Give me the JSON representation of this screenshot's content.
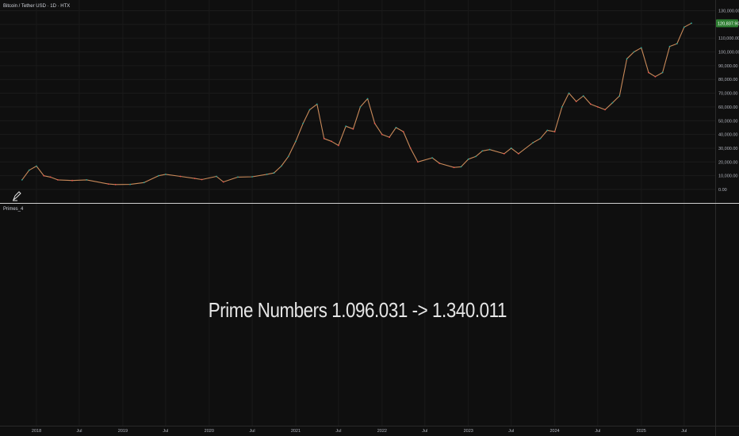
{
  "header": {
    "symbol_line": "Bitcoin / Tether USD · 1D · HTX"
  },
  "indicator": {
    "name": "Primes_4",
    "overlay_text": "Prime Numbers 1.096.031 -> 1.340.011"
  },
  "price_axis": {
    "labels": [
      "130,000.00",
      "120,837.90",
      "110,000.00",
      "100,000.00",
      "90,000.00",
      "80,000.00",
      "70,000.00",
      "60,000.00",
      "50,000.00",
      "40,000.00",
      "30,000.00",
      "20,000.00",
      "10,000.00",
      "0.00"
    ],
    "last_price": "120,837.90",
    "last_price_value": 120837.9
  },
  "time_axis": {
    "labels": [
      "2018",
      "Jul",
      "2019",
      "Jul",
      "2020",
      "Jul",
      "2021",
      "Jul",
      "2022",
      "Jul",
      "2023",
      "Jul",
      "2024",
      "Jul",
      "2025",
      "Jul"
    ]
  },
  "colors": {
    "background": "#0f0f0f",
    "line": "#c98a5a",
    "up_candle": "#26a69a",
    "down_candle": "#ef5350",
    "last_price_badge": "#2e7d32",
    "separator": "#d0d0d0"
  },
  "chart_data": {
    "type": "line",
    "title": "Bitcoin / Tether USD · 1D · HTX",
    "ylim": [
      0,
      130000
    ],
    "grid": true,
    "x": [
      "2017-11",
      "2017-12",
      "2018-01",
      "2018-02",
      "2018-03",
      "2018-04",
      "2018-06",
      "2018-08",
      "2018-11",
      "2018-12",
      "2019-02",
      "2019-04",
      "2019-06",
      "2019-07",
      "2019-09",
      "2019-11",
      "2019-12",
      "2020-02",
      "2020-03",
      "2020-05",
      "2020-07",
      "2020-09",
      "2020-10",
      "2020-11",
      "2020-12",
      "2021-01",
      "2021-02",
      "2021-03",
      "2021-04",
      "2021-05",
      "2021-06",
      "2021-07",
      "2021-08",
      "2021-09",
      "2021-10",
      "2021-11",
      "2021-12",
      "2022-01",
      "2022-02",
      "2022-03",
      "2022-04",
      "2022-05",
      "2022-06",
      "2022-08",
      "2022-09",
      "2022-11",
      "2022-12",
      "2023-01",
      "2023-02",
      "2023-03",
      "2023-04",
      "2023-06",
      "2023-07",
      "2023-08",
      "2023-10",
      "2023-11",
      "2023-12",
      "2024-01",
      "2024-02",
      "2024-03",
      "2024-04",
      "2024-05",
      "2024-06",
      "2024-07",
      "2024-08",
      "2024-09",
      "2024-10",
      "2024-11",
      "2024-12",
      "2025-01",
      "2025-02",
      "2025-03",
      "2025-04",
      "2025-05",
      "2025-06",
      "2025-07",
      "2025-08"
    ],
    "values": [
      7000,
      14000,
      17000,
      10000,
      9000,
      7000,
      6500,
      7000,
      4000,
      3600,
      3700,
      5000,
      10000,
      11000,
      9500,
      8000,
      7200,
      9500,
      5500,
      9000,
      9200,
      11000,
      12000,
      17000,
      24000,
      35000,
      48000,
      58000,
      62000,
      37000,
      35000,
      32000,
      46000,
      44000,
      60000,
      66000,
      48000,
      40000,
      38000,
      45000,
      42000,
      30000,
      20000,
      23000,
      19000,
      16000,
      16500,
      22000,
      24000,
      28000,
      29000,
      26000,
      30000,
      26000,
      34000,
      37000,
      43000,
      42000,
      60000,
      70000,
      64000,
      68000,
      62000,
      60000,
      58000,
      63000,
      68000,
      95000,
      100000,
      103000,
      85000,
      82000,
      85000,
      104000,
      106000,
      118000,
      120837.9
    ]
  }
}
